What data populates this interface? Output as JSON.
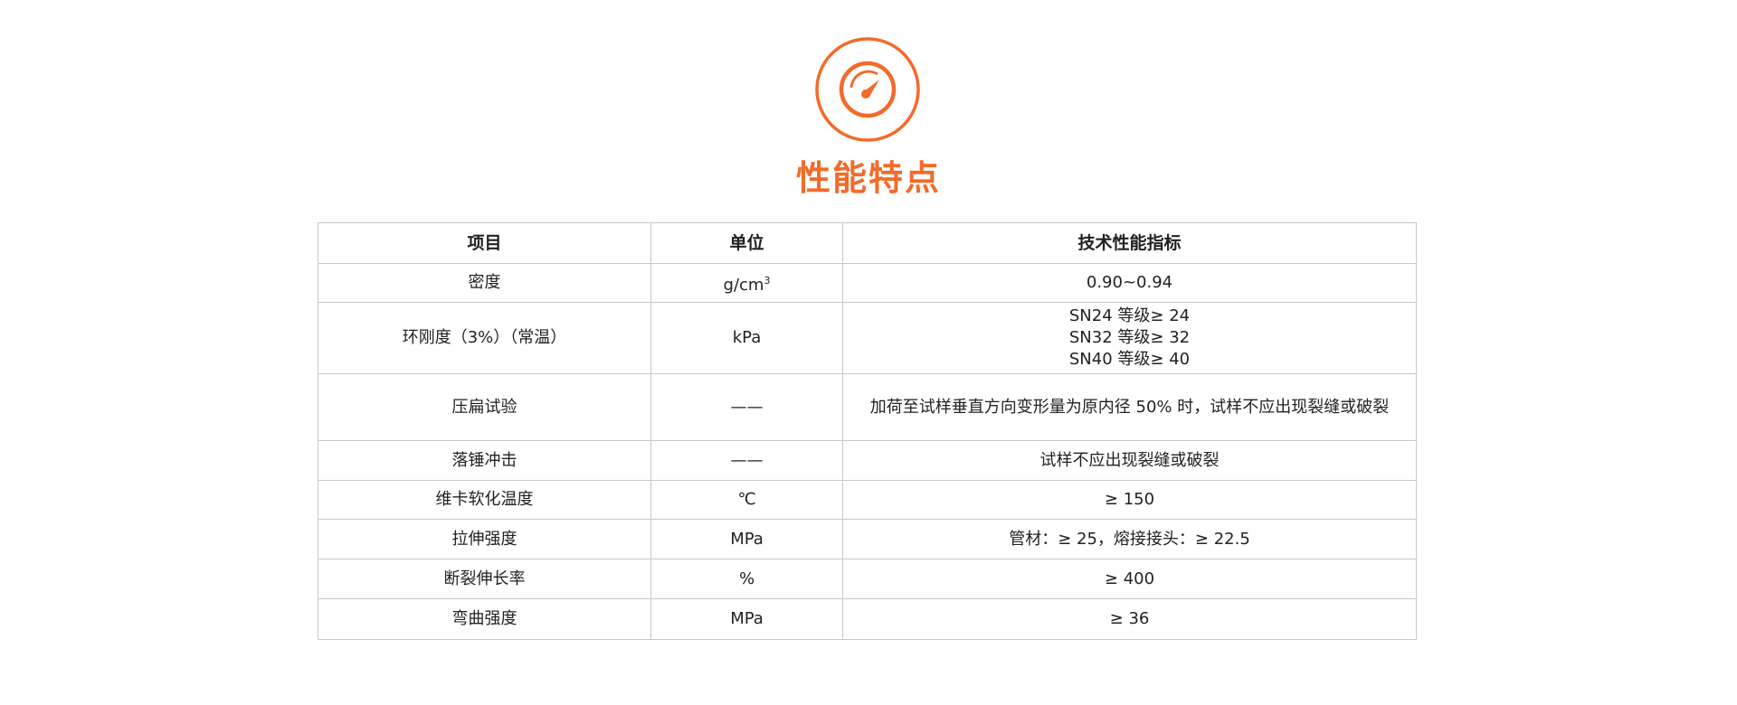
{
  "header": {
    "icon": "speedometer-icon",
    "title": "性能特点",
    "accent_color": "#F26B2A"
  },
  "table": {
    "headers": [
      "项目",
      "单位",
      "技术性能指标"
    ],
    "rows": [
      {
        "item": "密度",
        "unit": "g/cm",
        "unit_sup": "3",
        "spec": [
          "0.90~0.94"
        ]
      },
      {
        "item": "环刚度（3%）（常温）",
        "unit": "kPa",
        "spec": [
          "SN24 等级≥ 24",
          "SN32 等级≥ 32",
          "SN40 等级≥ 40"
        ]
      },
      {
        "item": "压扁试验",
        "unit": "——",
        "spec": [
          "加荷至试样垂直方向变形量为原内径 50% 时，试样不应出现裂缝或破裂"
        ]
      },
      {
        "item": "落锤冲击",
        "unit": "——",
        "spec": [
          "试样不应出现裂缝或破裂"
        ]
      },
      {
        "item": "维卡软化温度",
        "unit": "℃",
        "spec": [
          "≥ 150"
        ]
      },
      {
        "item": "拉伸强度",
        "unit": "MPa",
        "spec": [
          "管材：≥ 25，熔接接头：≥ 22.5"
        ]
      },
      {
        "item": "断裂伸长率",
        "unit": "%",
        "spec": [
          "≥ 400"
        ]
      },
      {
        "item": "弯曲强度",
        "unit": "MPa",
        "spec": [
          "≥ 36"
        ]
      }
    ]
  }
}
